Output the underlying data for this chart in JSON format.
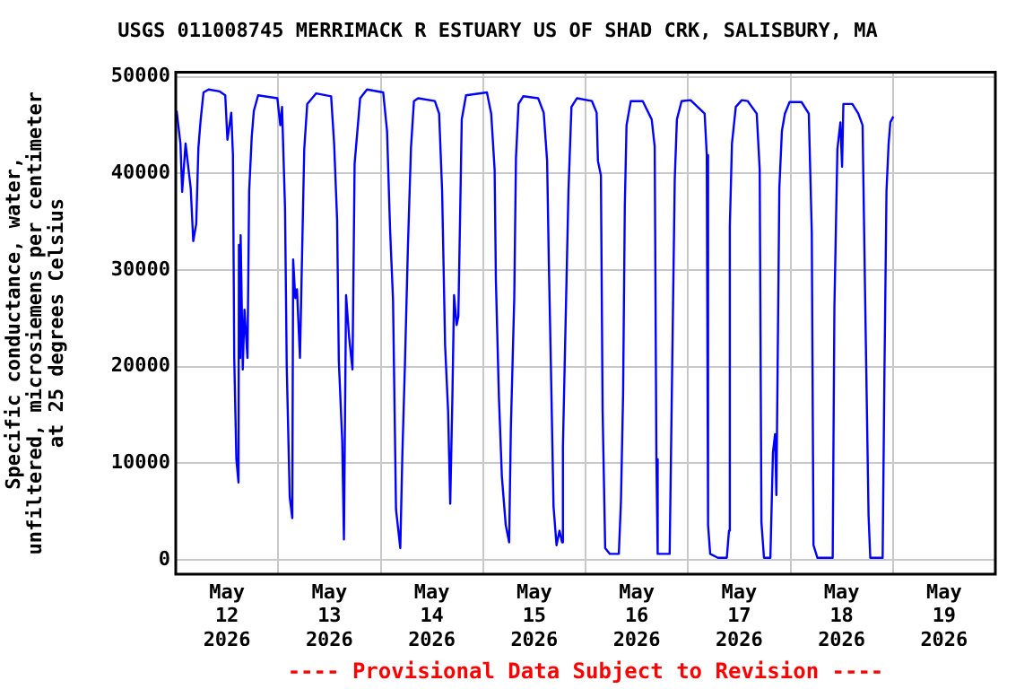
{
  "chart_data": {
    "type": "line",
    "title": "USGS 011008745 MERRIMACK R ESTUARY US OF SHAD CRK, SALISBURY, MA",
    "ylabel": "Specific conductance, water,\nunfiltered, microsiemens per centimeter\nat 25 degrees Celsius",
    "annotations": [
      "---- Provisional Data Subject to Revision ----"
    ],
    "xlim": [
      "2026-05-12T00:00",
      "2026-05-20T00:00"
    ],
    "xticks": [
      {
        "value": "2026-05-12T00:00",
        "label": null
      },
      {
        "value": "2026-05-12T12:00",
        "label": "May\n12\n2026"
      },
      {
        "value": "2026-05-13T00:00",
        "label": null
      },
      {
        "value": "2026-05-13T12:00",
        "label": "May\n13\n2026"
      },
      {
        "value": "2026-05-14T00:00",
        "label": null
      },
      {
        "value": "2026-05-14T12:00",
        "label": "May\n14\n2026"
      },
      {
        "value": "2026-05-15T00:00",
        "label": null
      },
      {
        "value": "2026-05-15T12:00",
        "label": "May\n15\n2026"
      },
      {
        "value": "2026-05-16T00:00",
        "label": null
      },
      {
        "value": "2026-05-16T12:00",
        "label": "May\n16\n2026"
      },
      {
        "value": "2026-05-17T00:00",
        "label": null
      },
      {
        "value": "2026-05-17T12:00",
        "label": "May\n17\n2026"
      },
      {
        "value": "2026-05-18T00:00",
        "label": null
      },
      {
        "value": "2026-05-18T12:00",
        "label": "May\n18\n2026"
      },
      {
        "value": "2026-05-19T00:00",
        "label": null
      },
      {
        "value": "2026-05-19T12:00",
        "label": "May\n19\n2026"
      },
      {
        "value": "2026-05-20T00:00",
        "label": null
      }
    ],
    "ylim": [
      -1500,
      50500
    ],
    "yticks": [
      0,
      10000,
      20000,
      30000,
      40000,
      50000
    ],
    "grid": true,
    "marker": "none",
    "x": [
      "2026-05-12T00:12",
      "2026-05-12T01:06",
      "2026-05-12T01:30",
      "2026-05-12T02:18",
      "2026-05-12T03:30",
      "2026-05-12T04:06",
      "2026-05-12T04:48",
      "2026-05-12T05:18",
      "2026-05-12T05:48",
      "2026-05-12T06:30",
      "2026-05-12T07:42",
      "2026-05-12T10:18",
      "2026-05-12T11:36",
      "2026-05-12T12:06",
      "2026-05-12T13:00",
      "2026-05-12T13:24",
      "2026-05-12T13:42",
      "2026-05-12T14:12",
      "2026-05-12T14:42",
      "2026-05-12T14:48",
      "2026-05-12T15:06",
      "2026-05-12T15:12",
      "2026-05-12T15:42",
      "2026-05-12T16:06",
      "2026-05-12T16:48",
      "2026-05-12T17:12",
      "2026-05-12T17:48",
      "2026-05-12T18:18",
      "2026-05-12T19:18",
      "2026-05-12T23:48",
      "2026-05-13T00:30",
      "2026-05-13T00:54",
      "2026-05-13T01:36",
      "2026-05-13T02:00",
      "2026-05-13T02:42",
      "2026-05-13T03:18",
      "2026-05-13T03:30",
      "2026-05-13T04:00",
      "2026-05-13T04:24",
      "2026-05-13T05:06",
      "2026-05-13T05:36",
      "2026-05-13T06:06",
      "2026-05-13T06:48",
      "2026-05-13T08:54",
      "2026-05-13T12:24",
      "2026-05-13T13:06",
      "2026-05-13T13:48",
      "2026-05-13T14:12",
      "2026-05-13T15:00",
      "2026-05-13T15:24",
      "2026-05-13T15:54",
      "2026-05-13T16:36",
      "2026-05-13T17:24",
      "2026-05-13T17:54",
      "2026-05-13T19:12",
      "2026-05-13T20:48",
      "2026-05-14T00:36",
      "2026-05-14T01:30",
      "2026-05-14T02:12",
      "2026-05-14T02:54",
      "2026-05-14T03:36",
      "2026-05-14T04:36",
      "2026-05-14T05:06",
      "2026-05-14T05:42",
      "2026-05-14T06:24",
      "2026-05-14T07:06",
      "2026-05-14T07:48",
      "2026-05-14T08:48",
      "2026-05-14T12:42",
      "2026-05-14T13:42",
      "2026-05-14T14:24",
      "2026-05-14T15:06",
      "2026-05-14T15:48",
      "2026-05-14T16:18",
      "2026-05-14T16:48",
      "2026-05-14T17:12",
      "2026-05-14T17:48",
      "2026-05-14T18:12",
      "2026-05-14T18:36",
      "2026-05-14T19:00",
      "2026-05-14T20:00",
      "2026-05-15T00:54",
      "2026-05-15T01:54",
      "2026-05-15T02:42",
      "2026-05-15T03:00",
      "2026-05-15T03:42",
      "2026-05-15T04:24",
      "2026-05-15T05:18",
      "2026-05-15T06:06",
      "2026-05-15T06:30",
      "2026-05-15T07:18",
      "2026-05-15T07:42",
      "2026-05-15T08:18",
      "2026-05-15T09:24",
      "2026-05-15T12:54",
      "2026-05-15T14:12",
      "2026-05-15T15:00",
      "2026-05-15T15:24",
      "2026-05-15T15:54",
      "2026-05-15T16:30",
      "2026-05-15T17:12",
      "2026-05-15T17:54",
      "2026-05-15T18:30",
      "2026-05-15T18:42",
      "2026-05-15T19:18",
      "2026-05-15T20:00",
      "2026-05-15T20:42",
      "2026-05-15T22:00",
      "2026-05-16T01:30",
      "2026-05-16T02:36",
      "2026-05-16T02:54",
      "2026-05-16T03:36",
      "2026-05-16T04:00",
      "2026-05-16T04:36",
      "2026-05-16T05:42",
      "2026-05-16T07:48",
      "2026-05-16T08:18",
      "2026-05-16T08:48",
      "2026-05-16T09:12",
      "2026-05-16T09:36",
      "2026-05-16T10:36",
      "2026-05-16T13:24",
      "2026-05-16T15:30",
      "2026-05-16T16:12",
      "2026-05-16T16:36",
      "2026-05-16T16:54",
      "2026-05-16T19:42",
      "2026-05-16T20:18",
      "2026-05-16T20:54",
      "2026-05-16T21:24",
      "2026-05-16T22:30",
      "2026-05-17T00:36",
      "2026-05-17T03:54",
      "2026-05-17T04:24",
      "2026-05-17T04:42",
      "2026-05-17T05:12",
      "2026-05-17T07:00",
      "2026-05-17T09:06",
      "2026-05-17T09:36",
      "2026-05-17T09:48",
      "2026-05-17T10:18",
      "2026-05-17T11:12",
      "2026-05-17T12:36",
      "2026-05-17T14:00",
      "2026-05-17T16:06",
      "2026-05-17T16:48",
      "2026-05-17T17:12",
      "2026-05-17T17:48",
      "2026-05-17T19:18",
      "2026-05-17T19:54",
      "2026-05-17T20:24",
      "2026-05-17T20:42",
      "2026-05-17T21:00",
      "2026-05-17T21:24",
      "2026-05-17T22:00",
      "2026-05-17T22:42",
      "2026-05-17T23:48",
      "2026-05-18T02:36",
      "2026-05-18T04:18",
      "2026-05-18T05:00",
      "2026-05-18T05:24",
      "2026-05-18T06:18",
      "2026-05-18T09:54",
      "2026-05-18T10:18",
      "2026-05-18T11:00",
      "2026-05-18T11:42",
      "2026-05-18T12:06",
      "2026-05-18T12:24",
      "2026-05-18T14:30",
      "2026-05-18T15:54",
      "2026-05-18T16:54",
      "2026-05-18T17:30",
      "2026-05-18T18:18",
      "2026-05-18T18:42",
      "2026-05-18T21:36",
      "2026-05-18T22:00",
      "2026-05-18T22:30",
      "2026-05-18T23:00",
      "2026-05-18T23:24",
      "2026-05-19T00:06"
    ],
    "series": [
      {
        "color": "#0000ff",
        "values": [
          46500,
          43100,
          38100,
          43100,
          38500,
          33000,
          34800,
          42600,
          45400,
          48400,
          48700,
          48500,
          48100,
          43500,
          46300,
          41900,
          20900,
          10400,
          8000,
          32600,
          20900,
          33600,
          19700,
          25900,
          20900,
          38200,
          43800,
          46500,
          48100,
          47800,
          45000,
          46900,
          36400,
          20000,
          6500,
          4300,
          31100,
          27100,
          28000,
          20900,
          31700,
          42500,
          47200,
          48300,
          48000,
          43100,
          35200,
          20600,
          12300,
          2100,
          27400,
          23100,
          19700,
          41000,
          47800,
          48700,
          48400,
          44400,
          34300,
          26900,
          5200,
          1200,
          11100,
          20400,
          32600,
          42600,
          47500,
          47800,
          47500,
          46200,
          38200,
          22200,
          15400,
          5800,
          16700,
          27400,
          24300,
          25200,
          35200,
          45600,
          48100,
          48400,
          46200,
          40400,
          28900,
          16900,
          8600,
          3600,
          1800,
          13500,
          27100,
          41600,
          47200,
          48000,
          47800,
          46300,
          41300,
          30800,
          19700,
          5500,
          1500,
          3000,
          1800,
          11700,
          24000,
          38200,
          46900,
          47800,
          47500,
          46300,
          41300,
          39800,
          15400,
          1200,
          600,
          600,
          6100,
          17200,
          36700,
          45000,
          47500,
          47500,
          45600,
          42800,
          10400,
          600,
          600,
          20000,
          39400,
          45600,
          47500,
          47600,
          46200,
          41900,
          3600,
          600,
          200,
          200,
          3000,
          34500,
          43100,
          46900,
          47600,
          47500,
          46200,
          40400,
          3900,
          200,
          200,
          11100,
          13000,
          6700,
          20000,
          38500,
          44400,
          46200,
          47400,
          47400,
          46200,
          33900,
          1500,
          200,
          200,
          26200,
          42500,
          45300,
          40700,
          47200,
          47200,
          46200,
          45000,
          27100,
          4600,
          200,
          200,
          18500,
          38200,
          43100,
          45300,
          45900
        ]
      }
    ]
  }
}
